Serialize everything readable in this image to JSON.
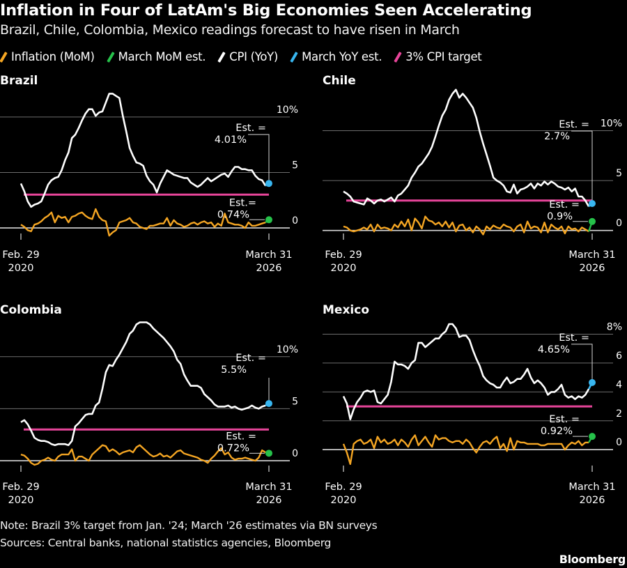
{
  "header": {
    "title": "Inflation in Four of LatAm's Big Economies Seen Accelerating",
    "subtitle": "Brazil, Chile, Colombia, Mexico readings forecast to have risen in March"
  },
  "legend": [
    {
      "label": "Inflation (MoM)",
      "color": "#f5a623"
    },
    {
      "label": "March MoM est.",
      "color": "#26c24a"
    },
    {
      "label": "CPI (YoY)",
      "color": "#ffffff"
    },
    {
      "label": "March YoY est.",
      "color": "#38b6f0"
    },
    {
      "label": "3% CPI target",
      "color": "#e8459a"
    }
  ],
  "footer": {
    "note": "Note: Brazil 3% target from Jan. '24; March '26 estimates via BN surveys",
    "sources": "Sources: Central banks, national statistics agencies, Bloomberg",
    "brand": "Bloomberg"
  },
  "colors": {
    "background": "#000000",
    "mom": "#f5a623",
    "mom_est": "#26c24a",
    "yoy": "#ffffff",
    "yoy_est": "#38b6f0",
    "target": "#e8459a",
    "grid": "#6e6e6e",
    "zero": "#d8d8d8"
  },
  "chart_data": [
    {
      "type": "line",
      "title": "Brazil",
      "x_start": "Feb. 29 2020",
      "x_end": "March 31 2026",
      "xticks": [
        [
          "Feb. 29",
          "2020"
        ],
        [
          "March 31",
          "2026"
        ]
      ],
      "yticks": [
        0,
        5,
        10
      ],
      "ytick_labels": [
        "0",
        "5",
        "10%"
      ],
      "ylim": [
        -1,
        12.5
      ],
      "target": 3,
      "yoy_est": 4.01,
      "mom_est": 0.74,
      "yoy_est_label": [
        "Est. =",
        "4.01%"
      ],
      "mom_est_label": [
        "Est.=",
        "0.74%"
      ],
      "series": [
        {
          "name": "CPI (YoY)",
          "values": [
            4.0,
            3.3,
            2.4,
            1.9,
            2.1,
            2.2,
            2.4,
            3.1,
            3.9,
            4.3,
            4.5,
            4.6,
            5.2,
            6.1,
            6.8,
            8.1,
            8.4,
            9.0,
            9.7,
            10.3,
            10.7,
            10.7,
            10.1,
            10.4,
            10.5,
            11.3,
            12.1,
            12.1,
            11.9,
            11.7,
            10.1,
            8.7,
            7.2,
            6.5,
            5.9,
            5.8,
            5.6,
            4.7,
            4.2,
            3.9,
            3.2,
            4.0,
            4.6,
            5.2,
            5.0,
            4.8,
            4.7,
            4.6,
            4.5,
            4.5,
            4.1,
            3.9,
            3.7,
            3.9,
            4.2,
            4.5,
            4.2,
            4.4,
            4.6,
            4.8,
            4.9,
            4.6,
            5.1,
            5.5,
            5.5,
            5.3,
            5.3,
            5.2,
            5.2,
            4.7,
            4.4,
            4.3,
            3.8
          ]
        },
        {
          "name": "Inflation (MoM)",
          "values": [
            0.3,
            0.1,
            -0.2,
            -0.3,
            0.3,
            0.4,
            0.6,
            0.9,
            1.1,
            1.4,
            0.5,
            1.1,
            0.9,
            1.0,
            0.5,
            1.0,
            1.1,
            1.3,
            1.4,
            1.1,
            0.9,
            0.8,
            1.7,
            1.0,
            0.7,
            0.6,
            -0.7,
            -0.4,
            -0.2,
            0.5,
            0.6,
            0.7,
            0.9,
            0.5,
            0.4,
            0.1,
            0.0,
            -0.1,
            0.2,
            0.2,
            0.3,
            0.4,
            0.4,
            0.9,
            0.2,
            0.7,
            0.4,
            0.3,
            0.1,
            0.2,
            0.4,
            0.5,
            0.3,
            0.5,
            0.6,
            0.4,
            0.5,
            0.1,
            0.4,
            0.2,
            1.3,
            0.5,
            0.4,
            0.3,
            0.3,
            0.2,
            0.0,
            0.5,
            0.2,
            0.2,
            0.3,
            0.4,
            0.5
          ]
        }
      ]
    },
    {
      "type": "line",
      "title": "Chile",
      "x_start": "Feb. 29 2020",
      "x_end": "March 31 2026",
      "xticks": [
        [
          "Feb. 29",
          "2020"
        ],
        [
          "March 31",
          "2026"
        ]
      ],
      "yticks": [
        0,
        5,
        10
      ],
      "ytick_labels": [
        "0",
        "5",
        "10%"
      ],
      "ylim": [
        -1,
        14.5
      ],
      "target": 3,
      "yoy_est": 2.7,
      "mom_est": 0.9,
      "yoy_est_label": [
        "Est. =",
        "2.7%"
      ],
      "mom_est_label": [
        "Est. =",
        "0.9%"
      ],
      "series": [
        {
          "name": "CPI (YoY)",
          "values": [
            3.9,
            3.7,
            3.4,
            2.9,
            2.8,
            2.7,
            2.6,
            3.2,
            3.0,
            2.7,
            3.0,
            3.1,
            2.9,
            3.1,
            3.3,
            2.9,
            3.5,
            3.7,
            4.1,
            4.5,
            5.3,
            5.8,
            6.4,
            6.7,
            7.2,
            7.7,
            8.4,
            9.4,
            10.5,
            11.5,
            12.1,
            13.1,
            13.7,
            14.1,
            13.3,
            13.7,
            13.3,
            12.8,
            12.3,
            11.3,
            9.9,
            8.7,
            7.6,
            6.5,
            5.3,
            5.0,
            4.8,
            4.5,
            3.9,
            3.8,
            4.6,
            3.7,
            4.1,
            4.2,
            4.4,
            4.7,
            4.2,
            4.7,
            4.5,
            4.9,
            4.6,
            4.9,
            4.7,
            4.4,
            4.3,
            4.1,
            4.3,
            3.9,
            4.2,
            3.4,
            3.4,
            3.0,
            2.4
          ]
        },
        {
          "name": "Inflation (MoM)",
          "values": [
            0.4,
            0.3,
            0.0,
            -0.1,
            0.0,
            0.1,
            0.3,
            0.1,
            0.6,
            -0.1,
            0.6,
            0.2,
            0.3,
            0.2,
            0.0,
            0.6,
            0.3,
            0.9,
            0.4,
            1.1,
            0.0,
            1.2,
            0.8,
            0.2,
            1.4,
            1.0,
            0.9,
            0.6,
            0.8,
            0.4,
            0.9,
            0.3,
            0.8,
            -0.1,
            0.5,
            0.6,
            0.0,
            0.3,
            -0.2,
            0.4,
            0.1,
            -0.4,
            0.4,
            0.1,
            0.5,
            0.3,
            0.2,
            0.6,
            0.4,
            0.3,
            -0.1,
            0.4,
            0.6,
            -0.2,
            0.9,
            0.2,
            0.4,
            0.3,
            -0.2,
            0.8,
            -0.2,
            0.6,
            0.3,
            0.1,
            0.4,
            -0.3,
            0.4,
            0.1,
            0.2,
            -0.1,
            0.3,
            0.1,
            -0.1
          ]
        }
      ]
    },
    {
      "type": "line",
      "title": "Colombia",
      "x_start": "Feb. 29 2020",
      "x_end": "March 31 2026",
      "xticks": [
        [
          "Feb. 29",
          "2020"
        ],
        [
          "March 31",
          "2026"
        ]
      ],
      "yticks": [
        0,
        5,
        10
      ],
      "ytick_labels": [
        "0",
        "5",
        "10%"
      ],
      "ylim": [
        -1,
        13.6
      ],
      "target": 3,
      "yoy_est": 5.5,
      "mom_est": 0.72,
      "yoy_est_label": [
        "Est. =",
        "5.5%"
      ],
      "mom_est_label": [
        "Est. =",
        "0.72%"
      ],
      "series": [
        {
          "name": "CPI (YoY)",
          "values": [
            3.7,
            3.9,
            3.5,
            2.9,
            2.2,
            2.0,
            1.9,
            1.9,
            1.8,
            1.6,
            1.5,
            1.6,
            1.6,
            1.6,
            1.5,
            1.9,
            3.3,
            3.6,
            4.0,
            4.4,
            4.5,
            4.5,
            5.3,
            5.6,
            6.9,
            8.5,
            9.2,
            9.1,
            9.7,
            10.2,
            10.8,
            11.4,
            12.2,
            12.5,
            13.1,
            13.3,
            13.3,
            13.3,
            13.1,
            12.7,
            12.4,
            12.1,
            11.8,
            11.4,
            11.0,
            10.5,
            9.7,
            9.3,
            8.3,
            7.7,
            7.2,
            7.2,
            7.2,
            7.0,
            6.4,
            6.1,
            5.8,
            5.4,
            5.2,
            5.2,
            5.2,
            5.3,
            5.1,
            5.2,
            5.0,
            4.9,
            5.0,
            5.1,
            5.3,
            5.1,
            5.0,
            5.2,
            5.3
          ]
        },
        {
          "name": "Inflation (MoM)",
          "values": [
            0.6,
            0.5,
            0.2,
            -0.2,
            -0.4,
            -0.3,
            0.0,
            0.1,
            0.3,
            0.1,
            0.0,
            0.4,
            0.6,
            0.6,
            0.6,
            1.1,
            0.0,
            0.4,
            0.4,
            0.2,
            0.0,
            0.6,
            0.9,
            1.2,
            1.5,
            1.4,
            0.9,
            1.1,
            0.9,
            0.6,
            0.8,
            0.9,
            1.0,
            0.8,
            1.3,
            1.5,
            1.2,
            0.9,
            0.6,
            0.4,
            0.5,
            0.7,
            0.4,
            0.5,
            0.3,
            0.6,
            0.9,
            1.0,
            0.7,
            0.6,
            0.5,
            0.4,
            0.3,
            0.1,
            0.0,
            -0.2,
            0.2,
            0.5,
            0.9,
            1.2,
            0.6,
            0.8,
            0.3,
            0.1,
            0.2,
            0.2,
            0.3,
            0.2,
            0.1,
            0.0,
            0.3,
            1.0,
            0.8
          ]
        }
      ]
    },
    {
      "type": "line",
      "title": "Mexico",
      "x_start": "Feb. 29 2020",
      "x_end": "March 31 2026",
      "xticks": [
        [
          "Feb. 29",
          "2020"
        ],
        [
          "March 31",
          "2026"
        ]
      ],
      "yticks": [
        0,
        2,
        4,
        6,
        8
      ],
      "ytick_labels": [
        "0",
        "2",
        "4",
        "6",
        "8%"
      ],
      "ylim": [
        -1.1,
        8.7
      ],
      "target": 3,
      "yoy_est": 4.65,
      "mom_est": 0.92,
      "yoy_est_label": [
        "Est. =",
        "4.65%"
      ],
      "mom_est_label": [
        "Est. =",
        "0.92%"
      ],
      "series": [
        {
          "name": "CPI (YoY)",
          "values": [
            3.7,
            3.2,
            2.1,
            2.8,
            3.3,
            3.6,
            4.0,
            4.1,
            4.0,
            4.1,
            3.3,
            3.2,
            3.5,
            3.8,
            4.7,
            6.1,
            5.9,
            5.9,
            5.8,
            5.6,
            6.0,
            6.2,
            7.4,
            7.4,
            7.1,
            7.3,
            7.5,
            7.7,
            7.7,
            8.0,
            8.2,
            8.7,
            8.7,
            8.4,
            7.8,
            7.9,
            7.9,
            7.6,
            6.9,
            6.3,
            5.8,
            5.1,
            4.8,
            4.6,
            4.5,
            4.3,
            4.3,
            4.7,
            5.0,
            4.6,
            4.7,
            4.9,
            4.9,
            5.2,
            5.6,
            5.0,
            4.6,
            4.8,
            4.6,
            4.3,
            3.8,
            4.0,
            4.0,
            4.2,
            4.5,
            3.8,
            3.6,
            3.7,
            3.5,
            3.7,
            3.6,
            3.8,
            4.2
          ]
        },
        {
          "name": "Inflation (MoM)",
          "values": [
            0.4,
            -0.2,
            -1.0,
            0.4,
            0.6,
            0.7,
            0.4,
            0.5,
            0.7,
            0.1,
            0.9,
            0.5,
            0.7,
            0.4,
            0.5,
            0.7,
            0.3,
            0.7,
            0.5,
            0.2,
            0.7,
            1.0,
            0.3,
            0.6,
            0.9,
            0.5,
            0.2,
            1.0,
            0.7,
            0.8,
            0.8,
            0.6,
            0.5,
            0.6,
            0.6,
            0.4,
            0.7,
            0.5,
            0.1,
            -0.2,
            0.2,
            0.5,
            0.6,
            0.4,
            0.7,
            0.9,
            0.1,
            0.4,
            -0.1,
            0.8,
            0.0,
            0.6,
            0.5,
            0.5,
            0.4,
            0.4,
            0.4,
            0.4,
            0.3,
            0.3,
            0.4,
            0.4,
            0.4,
            0.4,
            0.4,
            0.0,
            0.3,
            0.5,
            0.4,
            0.6,
            0.3,
            0.5,
            0.5
          ]
        }
      ]
    }
  ]
}
